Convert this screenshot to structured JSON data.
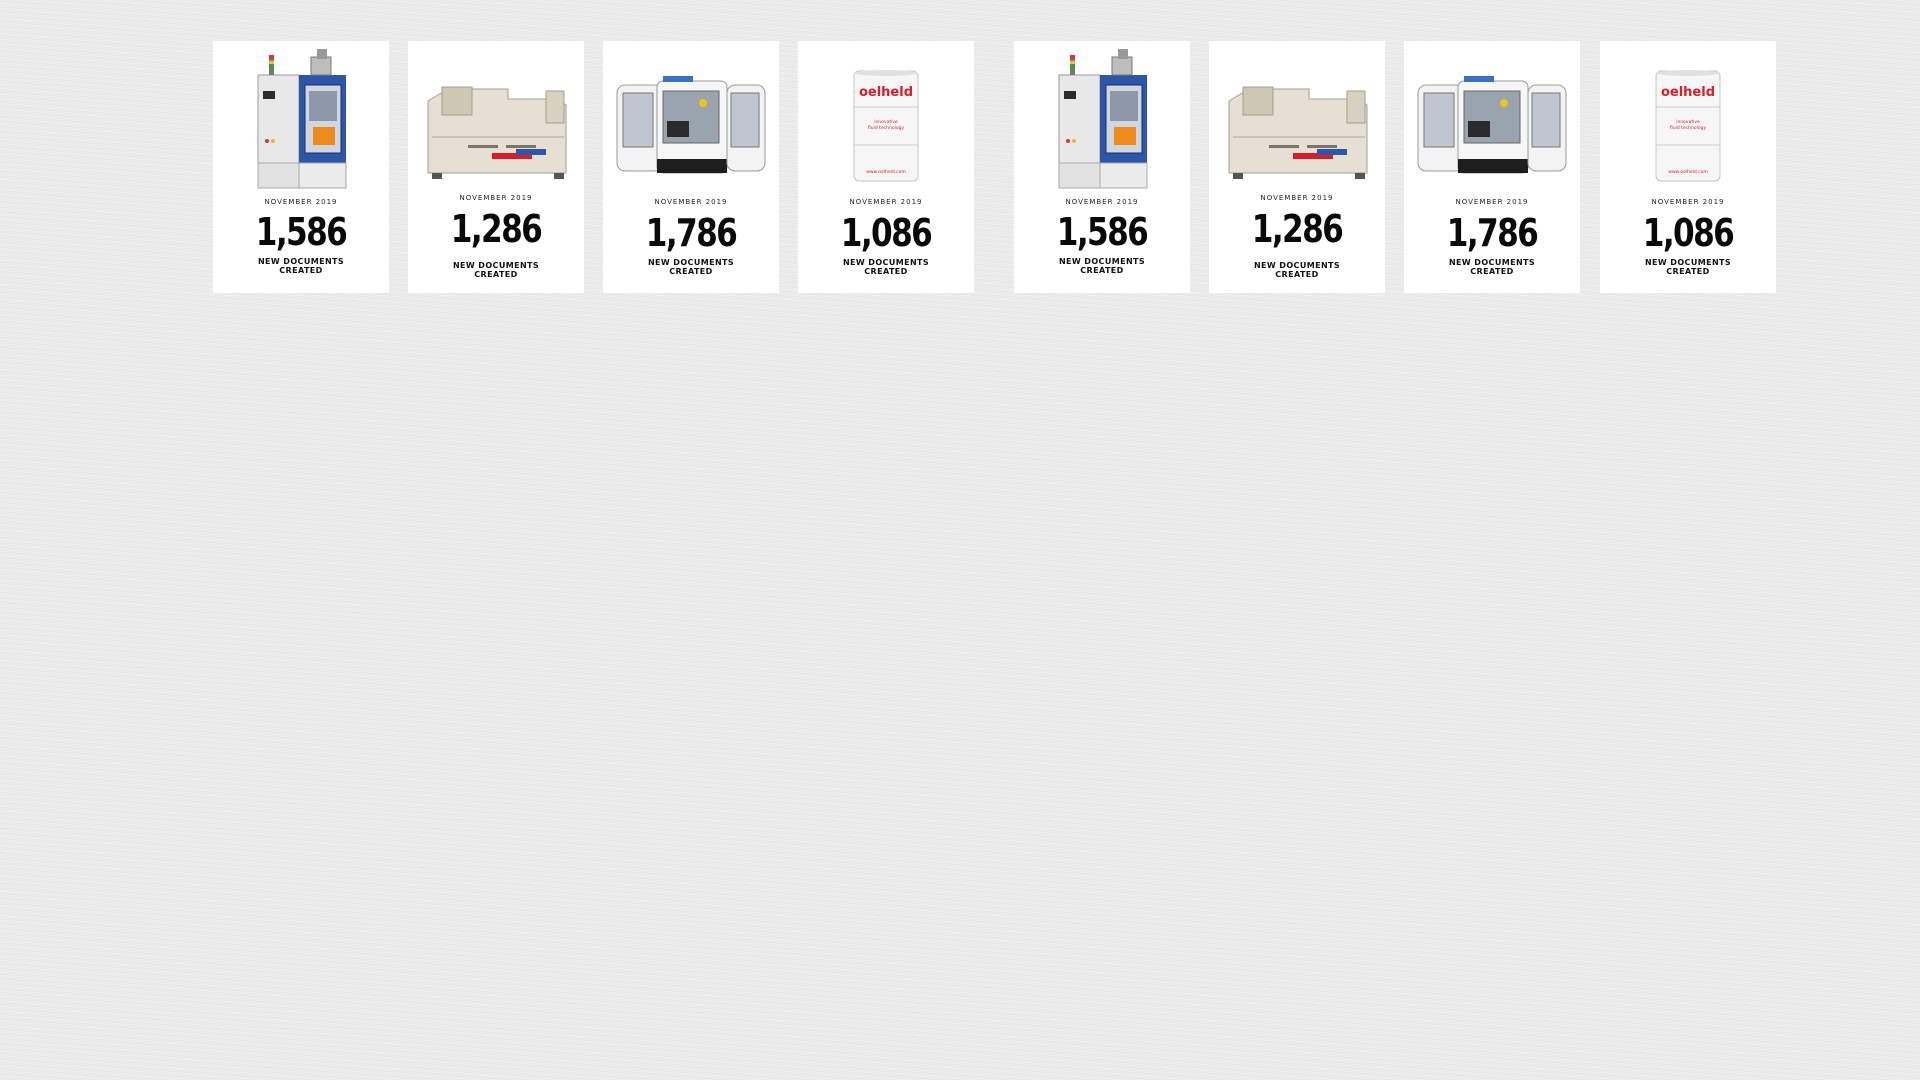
{
  "cards": [
    {
      "image": "cnc-grinding-machine-icon",
      "month": "NOVEMBER 2019",
      "value": "1,586",
      "caption_line1": "NEW DOCUMENTS",
      "caption_line2": "CREATED"
    },
    {
      "image": "industrial-filter-unit-icon",
      "month": "NOVEMBER 2019",
      "value": "1,286",
      "caption_line1": "NEW DOCUMENTS",
      "caption_line2": "CREATED"
    },
    {
      "image": "machining-center-icon",
      "month": "NOVEMBER 2019",
      "value": "1,786",
      "caption_line1": "NEW DOCUMENTS",
      "caption_line2": "CREATED"
    },
    {
      "image": "oil-drum-icon",
      "month": "NOVEMBER 2019",
      "value": "1,086",
      "caption_line1": "NEW DOCUMENTS",
      "caption_line2": "CREATED",
      "drum_brand": "oelheld",
      "drum_tagline_1": "innovative",
      "drum_tagline_2": "fluid technology",
      "drum_url": "www.oelheld.com"
    },
    {
      "image": "cnc-grinding-machine-icon",
      "month": "NOVEMBER 2019",
      "value": "1,586",
      "caption_line1": "NEW DOCUMENTS",
      "caption_line2": "CREATED"
    },
    {
      "image": "industrial-filter-unit-icon",
      "month": "NOVEMBER 2019",
      "value": "1,286",
      "caption_line1": "NEW DOCUMENTS",
      "caption_line2": "CREATED"
    },
    {
      "image": "machining-center-icon",
      "month": "NOVEMBER 2019",
      "value": "1,786",
      "caption_line1": "NEW DOCUMENTS",
      "caption_line2": "CREATED"
    },
    {
      "image": "oil-drum-icon",
      "month": "NOVEMBER 2019",
      "value": "1,086",
      "caption_line1": "NEW DOCUMENTS",
      "caption_line2": "CREATED",
      "drum_brand": "oelheld",
      "drum_tagline_1": "innovative",
      "drum_tagline_2": "fluid technology",
      "drum_url": "www.oelheld.com"
    }
  ],
  "colors": {
    "background": "#ececec",
    "card": "#ffffff",
    "machine_blue": "#2d55a8",
    "brand_red": "#d81e2a",
    "accent_orange": "#f08a1c"
  }
}
